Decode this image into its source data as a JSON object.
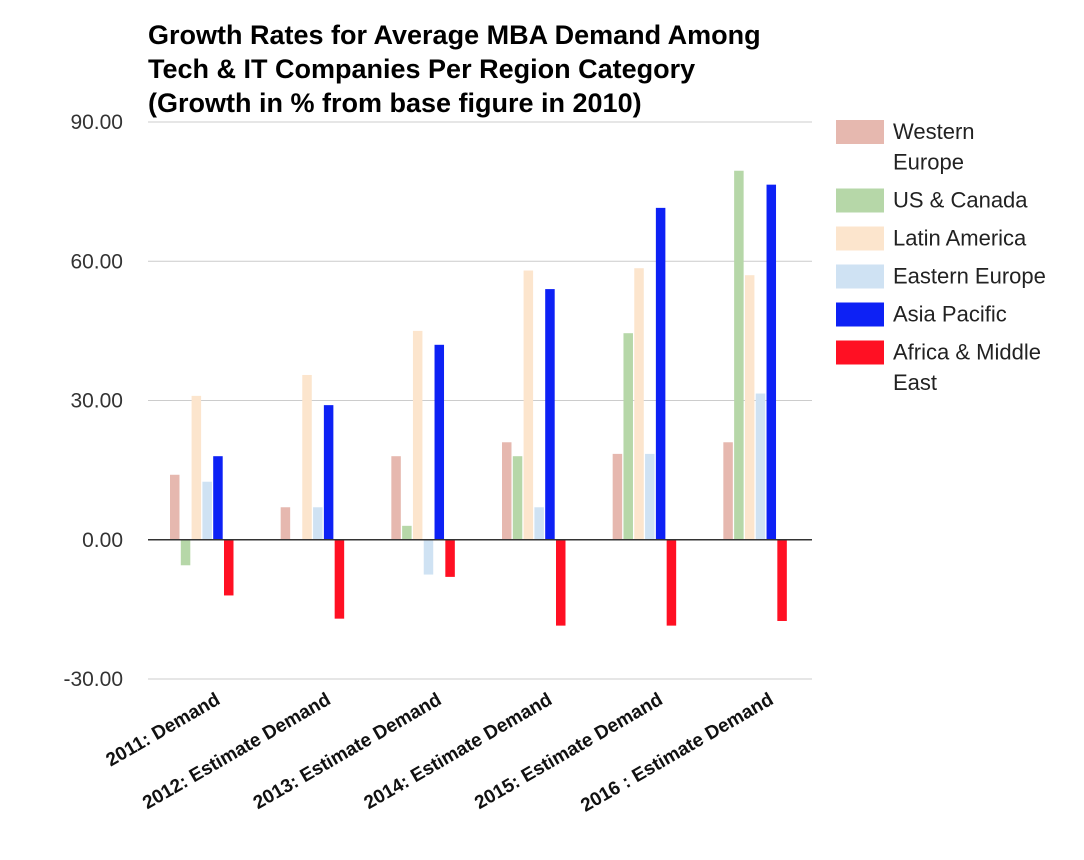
{
  "chart_data": {
    "type": "bar",
    "title_lines": [
      "Growth Rates for Average MBA Demand Among",
      "Tech & IT Companies Per Region Category",
      "(Growth in % from base figure in 2010)"
    ],
    "xlabel": "",
    "ylabel": "",
    "ylim": [
      -30,
      90
    ],
    "y_ticks": [
      "90.00",
      "60.00",
      "30.00",
      "0.00",
      "-30.00"
    ],
    "y_tick_values": [
      90,
      60,
      30,
      0,
      -30
    ],
    "grid": true,
    "legend_position": "right",
    "categories": [
      "2011: Demand",
      "2012: Estimate Demand",
      "2013: Estimate Demand",
      "2014: Estimate Demand",
      "2015: Estimate Demand",
      "2016 : Estimate Demand"
    ],
    "series": [
      {
        "name": "Western Europe",
        "legend_lines": [
          "Western",
          "Europe"
        ],
        "color": "#E6B8AF",
        "values": [
          14.0,
          7.0,
          18.0,
          21.0,
          18.5,
          21.0
        ]
      },
      {
        "name": "US & Canada",
        "legend_lines": [
          "US & Canada"
        ],
        "color": "#B6D7A8",
        "values": [
          -5.5,
          0.0,
          3.0,
          18.0,
          44.5,
          79.5
        ]
      },
      {
        "name": "Latin America",
        "legend_lines": [
          "Latin America"
        ],
        "color": "#FCE5CD",
        "values": [
          31.0,
          35.5,
          45.0,
          58.0,
          58.5,
          57.0
        ]
      },
      {
        "name": "Eastern Europe",
        "legend_lines": [
          "Eastern Europe"
        ],
        "color": "#CFE2F3",
        "values": [
          12.5,
          7.0,
          -7.5,
          7.0,
          18.5,
          31.5
        ]
      },
      {
        "name": "Asia Pacific",
        "legend_lines": [
          "Asia Pacific"
        ],
        "color": "#0D21F5",
        "values": [
          18.0,
          29.0,
          42.0,
          54.0,
          71.5,
          76.5
        ]
      },
      {
        "name": "Africa & Middle East",
        "legend_lines": [
          "Africa & Middle",
          "East"
        ],
        "color": "#FF1023",
        "values": [
          -12.0,
          -17.0,
          -8.0,
          -18.5,
          -18.5,
          -17.5
        ]
      }
    ],
    "colors": {
      "gridline": "#CCCCCC",
      "zero_line": "#333333",
      "text": "#222222"
    }
  }
}
